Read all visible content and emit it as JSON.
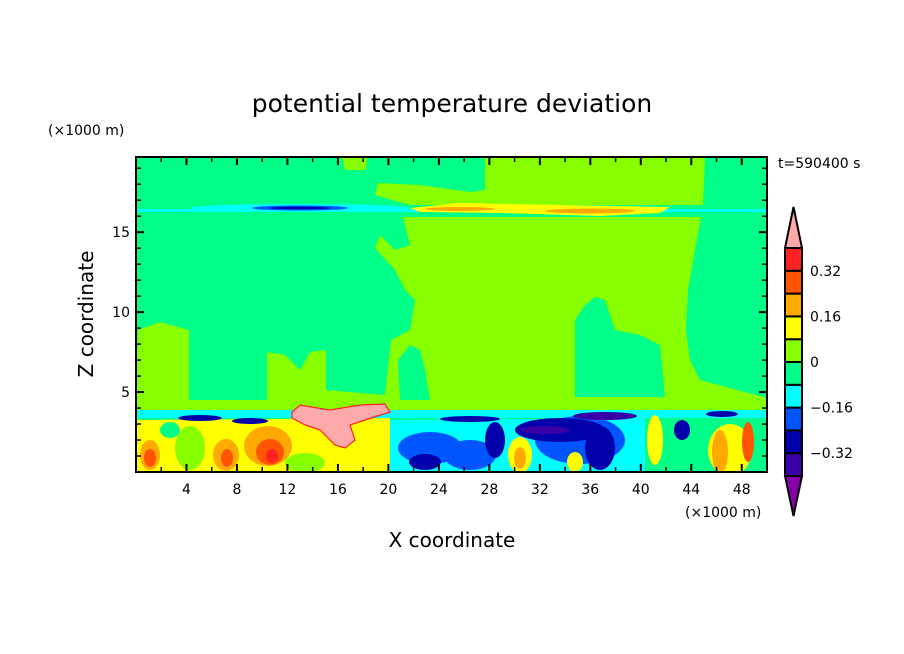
{
  "chart_data": {
    "type": "heatmap",
    "subtype": "filled-contour",
    "title": "potential temperature deviation",
    "xlabel": "X coordinate",
    "ylabel": "Z coordinate",
    "x_unit_label": "(×1000 m)",
    "y_unit_label": "(×1000 m)",
    "time_label": "t=590400 s",
    "xlim": [
      0,
      50
    ],
    "ylim": [
      0,
      19.7
    ],
    "x_ticks": [
      4,
      8,
      12,
      16,
      20,
      24,
      28,
      32,
      36,
      40,
      44,
      48
    ],
    "y_ticks": [
      5,
      10,
      15
    ],
    "grid": false,
    "colorbar": {
      "levels": [
        -0.4,
        -0.32,
        -0.24,
        -0.16,
        -0.08,
        0,
        0.08,
        0.16,
        0.24,
        0.32,
        0.4
      ],
      "labeled_levels": [
        "0.32",
        "0.16",
        "0",
        "−0.16",
        "−0.32"
      ],
      "labeled_values": [
        0.32,
        0.16,
        0,
        -0.16,
        -0.32
      ],
      "colors": [
        "#3a00a8",
        "#0000aa",
        "#0055ff",
        "#00ffff",
        "#00ff88",
        "#88ff00",
        "#ffff00",
        "#ffaa00",
        "#ff5500",
        "#ff2222"
      ],
      "over_color": "#ffaaaa",
      "under_color": "#8800aa",
      "placement": "right"
    },
    "features": [
      {
        "description": "thin layer near z≈16.5 km: negative (to about -0.32) for x≈4–20, positive (to about 0.32) for x≈22–42"
      },
      {
        "description": "background values mostly 0 to 0.08 above z≈4 km, with columns of -0.08 to 0"
      },
      {
        "description": "turbulent boundary layer below z≈4 km: strongly positive (>0.4) plume at x≈12–20, strong negative at x≈20–40"
      }
    ]
  }
}
